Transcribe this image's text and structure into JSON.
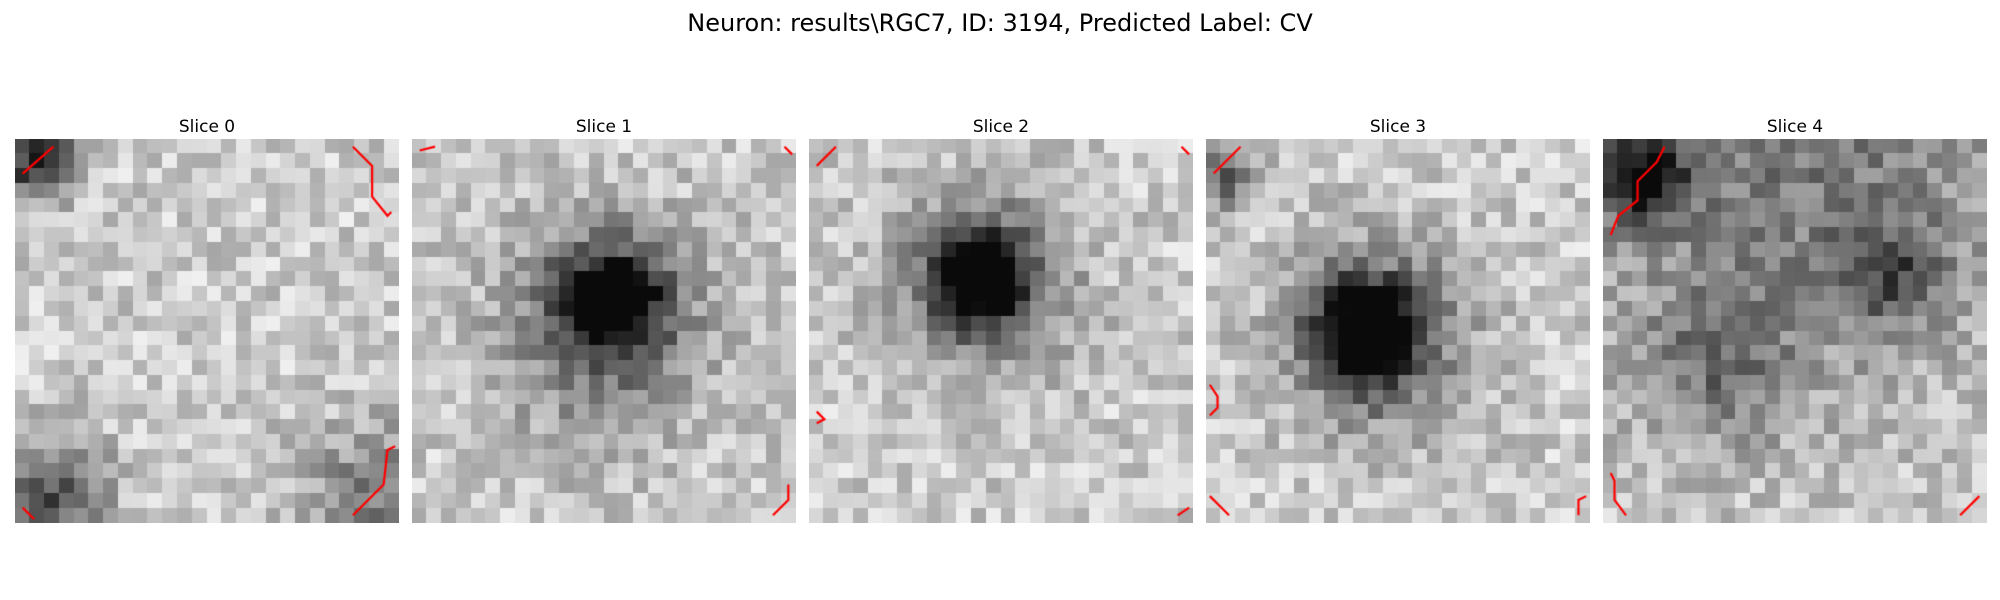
{
  "figure": {
    "suptitle": "Neuron: results\\RGC7, ID: 3194, Predicted Label: CV"
  },
  "panels": [
    {
      "title": "Slice 0",
      "dark_spots": [
        [
          0.06,
          0.06,
          0.1,
          0.85
        ],
        [
          0.1,
          0.92,
          0.14,
          0.6
        ],
        [
          0.95,
          0.95,
          0.2,
          0.4
        ]
      ],
      "contour_color": "#ff0000"
    },
    {
      "title": "Slice 1",
      "dark_spots": [
        [
          0.52,
          0.42,
          0.14,
          0.95
        ],
        [
          0.5,
          0.5,
          0.28,
          0.45
        ]
      ],
      "contour_color": "#ff0000"
    },
    {
      "title": "Slice 2",
      "dark_spots": [
        [
          0.45,
          0.36,
          0.12,
          0.95
        ],
        [
          0.45,
          0.38,
          0.24,
          0.5
        ]
      ],
      "contour_color": "#ff0000"
    },
    {
      "title": "Slice 3",
      "dark_spots": [
        [
          0.42,
          0.5,
          0.13,
          0.95
        ],
        [
          0.44,
          0.52,
          0.24,
          0.55
        ],
        [
          0.05,
          0.1,
          0.08,
          0.6
        ]
      ],
      "contour_color": "#ff0000"
    },
    {
      "title": "Slice 4",
      "dark_spots": [
        [
          0.1,
          0.1,
          0.12,
          0.85
        ],
        [
          0.75,
          0.35,
          0.14,
          0.45
        ],
        [
          0.3,
          0.6,
          0.2,
          0.35
        ],
        [
          0.5,
          0.03,
          0.6,
          0.4
        ]
      ],
      "contour_color": "#ff0000"
    }
  ]
}
